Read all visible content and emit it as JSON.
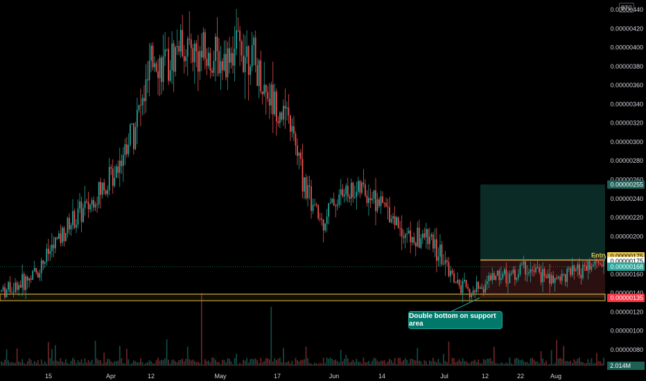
{
  "currency_badge": "BTC",
  "colors": {
    "up": "#26a69a",
    "down": "#ef5350",
    "support": "#e8c547",
    "target_zone": "#0a2b26",
    "stop_zone": "#2a1010",
    "background": "#000000"
  },
  "annotations": {
    "callout": "Double bottom on support area",
    "entry_label": "Entry"
  },
  "price_labels": {
    "target": "0.00000255",
    "entry": "0.00000175",
    "high": "0.00000175",
    "current": "0.00000168",
    "stop": "0.00000135",
    "volume": "2.014M"
  },
  "chart_data": {
    "type": "candlestick",
    "yaxis": {
      "ticks": [
        "0.00000440",
        "0.00000420",
        "0.00000400",
        "0.00000380",
        "0.00000360",
        "0.00000340",
        "0.00000320",
        "0.00000300",
        "0.00000280",
        "0.00000260",
        "0.00000240",
        "0.00000220",
        "0.00000200",
        "0.00000180",
        "0.00000160",
        "0.00000140",
        "0.00000120",
        "0.00000100",
        "0.00000080"
      ],
      "ylim": [
        7e-07,
        4.45e-06
      ],
      "side": "right"
    },
    "xaxis": {
      "ticks": [
        "15",
        "Apr",
        "12",
        "May",
        "17",
        "Jun",
        "14",
        "Jul",
        "12",
        "22",
        "Aug"
      ]
    },
    "support_zone": [
      1.32e-06,
      1.39e-06
    ],
    "position": {
      "entry": 1.75e-06,
      "target": 2.55e-06,
      "stop": 1.35e-06
    },
    "trend_points": [
      [
        0,
        1.42e-06
      ],
      [
        12,
        1.5e-06
      ],
      [
        20,
        1.62e-06
      ],
      [
        30,
        1.9e-06
      ],
      [
        40,
        2.15e-06
      ],
      [
        50,
        2.32e-06
      ],
      [
        60,
        2.55e-06
      ],
      [
        70,
        2.9e-06
      ],
      [
        80,
        3.35e-06
      ],
      [
        88,
        3.9e-06
      ],
      [
        95,
        3.75e-06
      ],
      [
        102,
        4.05e-06
      ],
      [
        110,
        3.95e-06
      ],
      [
        118,
        3.88e-06
      ],
      [
        126,
        3.85e-06
      ],
      [
        134,
        4e-06
      ],
      [
        142,
        3.98e-06
      ],
      [
        150,
        3.6e-06
      ],
      [
        158,
        3.4e-06
      ],
      [
        166,
        3.18e-06
      ],
      [
        172,
        2.7e-06
      ],
      [
        178,
        2.35e-06
      ],
      [
        184,
        2.15e-06
      ],
      [
        190,
        2.35e-06
      ],
      [
        196,
        2.45e-06
      ],
      [
        204,
        2.5e-06
      ],
      [
        212,
        2.45e-06
      ],
      [
        220,
        2.32e-06
      ],
      [
        228,
        2.15e-06
      ],
      [
        236,
        1.95e-06
      ],
      [
        244,
        2e-06
      ],
      [
        250,
        1.85e-06
      ],
      [
        256,
        1.68e-06
      ],
      [
        262,
        1.48e-06
      ],
      [
        270,
        1.4e-06
      ],
      [
        278,
        1.5e-06
      ],
      [
        286,
        1.62e-06
      ],
      [
        294,
        1.58e-06
      ],
      [
        300,
        1.68e-06
      ],
      [
        308,
        1.6e-06
      ],
      [
        316,
        1.55e-06
      ],
      [
        324,
        1.58e-06
      ],
      [
        332,
        1.62e-06
      ],
      [
        340,
        1.68e-06
      ],
      [
        346,
        1.75e-06
      ]
    ],
    "candle_count": 347
  }
}
